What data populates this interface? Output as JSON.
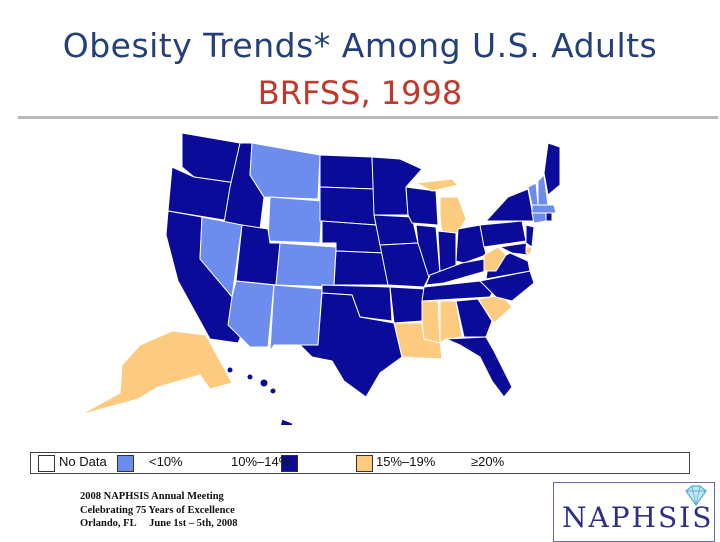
{
  "title": {
    "line1": "Obesity Trends* Among U.S. Adults",
    "line2": "BRFSS, 1998"
  },
  "colors": {
    "no_data": "#ffffff",
    "lt10": "#6c8ded",
    "10_14": "#0b0b9a",
    "15_19": "#fccb7f",
    "ge20": "#ffffff"
  },
  "legend": [
    {
      "label": "No Data",
      "color": "#ffffff"
    },
    {
      "label": "<10%",
      "color": "#6c8ded"
    },
    {
      "label": "10%–14%",
      "color": "#0b0b9a"
    },
    {
      "label": "15%–19%",
      "color": "#fccb7f"
    },
    {
      "label": "≥20%",
      "color": ""
    }
  ],
  "footer": {
    "line1": "2008 NAPHSIS Annual Meeting",
    "line2": "Celebrating 75 Years of Excellence",
    "line3": "Orlando, FL     June 1st – 5th, 2008"
  },
  "logo": {
    "text": "NAPHSIS",
    "icon": "diamond-icon"
  }
}
